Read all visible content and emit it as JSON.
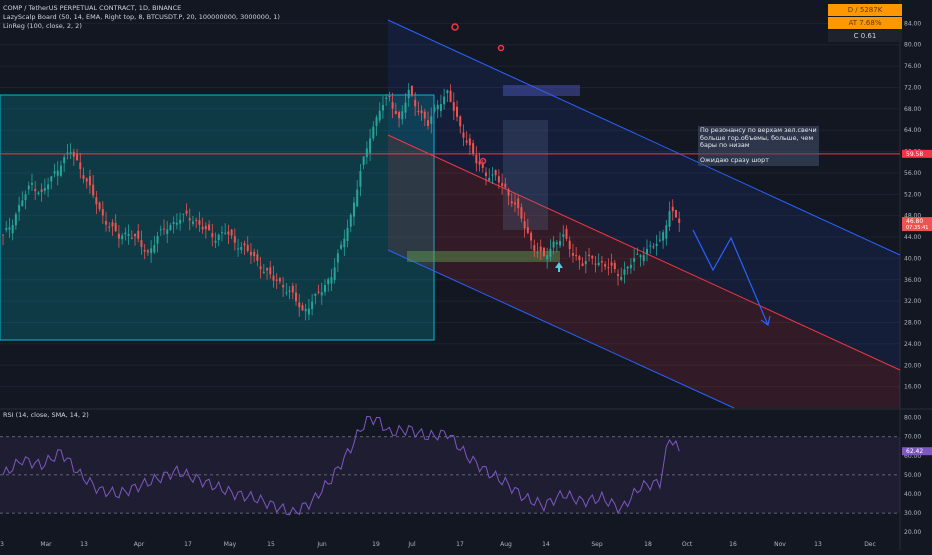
{
  "header": {
    "line1": "COMP / TetherUS PERPETUAL CONTRACT, 1D, BINANCE",
    "line2": "LazyScalp Board (50, 14, EMA, Right top, 8, BTCUSDT.P, 20, 100000000, 3000000, 1)",
    "line3": "LinReg (100, close, 2, 2)",
    "rsi_label": "RSI (14, close, SMA, 14, 2)"
  },
  "board": {
    "row1": "D / 5287K",
    "row2": "AT 7.68%",
    "row3": "C  0.61"
  },
  "annotation": {
    "line1": "По резонансу по верхам зел.свечи",
    "line2": "больше гор.объемы, больше, чем",
    "line3": "бары по низам",
    "line4": "Ожидаю сразу шорт"
  },
  "price_labels": {
    "resistance": "59.58",
    "last": "46.80",
    "last_sub": "07:35:41",
    "rsi_last": "62.42"
  },
  "colors": {
    "bull": "#26a69a",
    "bear": "#ef5350",
    "channel": "#2962ff",
    "box": "#00bcd4",
    "rsi": "#7e57c2",
    "resistance": "#f23645"
  },
  "chart_data": {
    "type": "candlestick",
    "price_ticks": [
      "84.00",
      "80.00",
      "76.00",
      "72.00",
      "68.00",
      "64.00",
      "60.00",
      "56.00",
      "52.00",
      "48.00",
      "44.00",
      "40.00",
      "36.00",
      "32.00",
      "28.00",
      "24.00",
      "20.00",
      "16.00"
    ],
    "rsi_ticks": [
      "80.00",
      "70.00",
      "60.00",
      "50.00",
      "40.00",
      "30.00",
      "20.00"
    ],
    "x_ticks": [
      "3",
      "Mar",
      "13",
      "Apr",
      "17",
      "May",
      "15",
      "Jun",
      "19",
      "Jul",
      "17",
      "Aug",
      "14",
      "Sep",
      "18",
      "Oct",
      "16",
      "Nov",
      "13",
      "Dec"
    ],
    "ylim": [
      12,
      88
    ],
    "rsi_ylim": [
      18,
      84
    ],
    "resistance_level": 59.58,
    "last_price": 46.8,
    "rsi_last": 62.42,
    "rsi_levels": [
      70,
      50,
      30
    ],
    "close_path": [
      [
        0,
        44
      ],
      [
        3,
        47
      ],
      [
        6,
        51
      ],
      [
        9,
        54
      ],
      [
        12,
        52
      ],
      [
        15,
        55
      ],
      [
        18,
        58
      ],
      [
        21,
        60
      ],
      [
        24,
        57
      ],
      [
        27,
        53
      ],
      [
        30,
        49
      ],
      [
        33,
        46
      ],
      [
        36,
        44
      ],
      [
        39,
        45
      ],
      [
        42,
        43
      ],
      [
        45,
        41
      ],
      [
        48,
        44
      ],
      [
        51,
        46
      ],
      [
        54,
        47
      ],
      [
        57,
        48
      ],
      [
        60,
        47
      ],
      [
        63,
        45
      ],
      [
        66,
        44
      ],
      [
        69,
        45
      ],
      [
        72,
        43
      ],
      [
        75,
        42
      ],
      [
        78,
        40
      ],
      [
        81,
        38
      ],
      [
        84,
        36
      ],
      [
        87,
        35
      ],
      [
        90,
        33
      ],
      [
        93,
        30
      ],
      [
        96,
        32
      ],
      [
        99,
        34
      ],
      [
        102,
        37
      ],
      [
        105,
        42
      ],
      [
        108,
        48
      ],
      [
        111,
        56
      ],
      [
        114,
        63
      ],
      [
        117,
        68
      ],
      [
        120,
        70
      ],
      [
        123,
        66
      ],
      [
        126,
        71
      ],
      [
        129,
        68
      ],
      [
        132,
        65
      ],
      [
        135,
        69
      ],
      [
        138,
        71
      ],
      [
        141,
        66
      ],
      [
        144,
        62
      ],
      [
        147,
        58
      ],
      [
        150,
        56
      ],
      [
        153,
        55
      ],
      [
        156,
        53
      ],
      [
        159,
        50
      ],
      [
        162,
        46
      ],
      [
        165,
        42
      ],
      [
        168,
        40
      ],
      [
        171,
        43
      ],
      [
        174,
        44
      ],
      [
        177,
        41
      ],
      [
        180,
        39
      ],
      [
        183,
        40
      ],
      [
        186,
        39
      ],
      [
        189,
        38
      ],
      [
        192,
        37
      ],
      [
        195,
        39
      ],
      [
        198,
        41
      ],
      [
        201,
        42
      ],
      [
        204,
        43
      ],
      [
        207,
        49
      ],
      [
        210,
        46.8
      ]
    ],
    "rsi_path": [
      [
        0,
        50
      ],
      [
        6,
        58
      ],
      [
        12,
        55
      ],
      [
        18,
        62
      ],
      [
        24,
        50
      ],
      [
        30,
        42
      ],
      [
        36,
        40
      ],
      [
        42,
        44
      ],
      [
        48,
        48
      ],
      [
        54,
        52
      ],
      [
        60,
        48
      ],
      [
        66,
        44
      ],
      [
        72,
        40
      ],
      [
        78,
        38
      ],
      [
        84,
        34
      ],
      [
        90,
        30
      ],
      [
        96,
        36
      ],
      [
        102,
        48
      ],
      [
        108,
        64
      ],
      [
        111,
        74
      ],
      [
        114,
        80
      ],
      [
        117,
        78
      ],
      [
        120,
        72
      ],
      [
        126,
        74
      ],
      [
        132,
        70
      ],
      [
        138,
        72
      ],
      [
        144,
        60
      ],
      [
        150,
        52
      ],
      [
        156,
        46
      ],
      [
        162,
        38
      ],
      [
        168,
        34
      ],
      [
        174,
        40
      ],
      [
        180,
        36
      ],
      [
        186,
        38
      ],
      [
        192,
        32
      ],
      [
        198,
        44
      ],
      [
        204,
        46
      ],
      [
        207,
        70
      ],
      [
        210,
        62.42
      ]
    ]
  }
}
